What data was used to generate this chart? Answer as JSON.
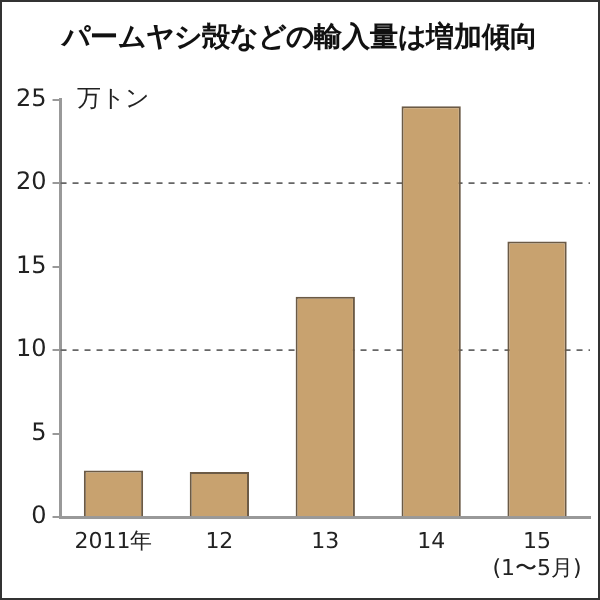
{
  "chart_data": {
    "type": "bar",
    "title": "パームヤシ殻などの輸入量は増加傾向",
    "ylabel": "万トン",
    "categories": [
      "2011年",
      "12",
      "13",
      "14",
      "15\n(1〜5月)"
    ],
    "values": [
      2.8,
      2.7,
      13.2,
      24.6,
      16.5
    ],
    "color": "#c8a26f",
    "ylim": [
      0,
      25
    ],
    "yticks": [
      0,
      5,
      10,
      15,
      20,
      25
    ],
    "ref_lines": [
      {
        "axis": "y",
        "value": 10,
        "line_style": "dashed"
      },
      {
        "axis": "y",
        "value": 20,
        "line_style": "dashed"
      }
    ],
    "legend": false
  }
}
